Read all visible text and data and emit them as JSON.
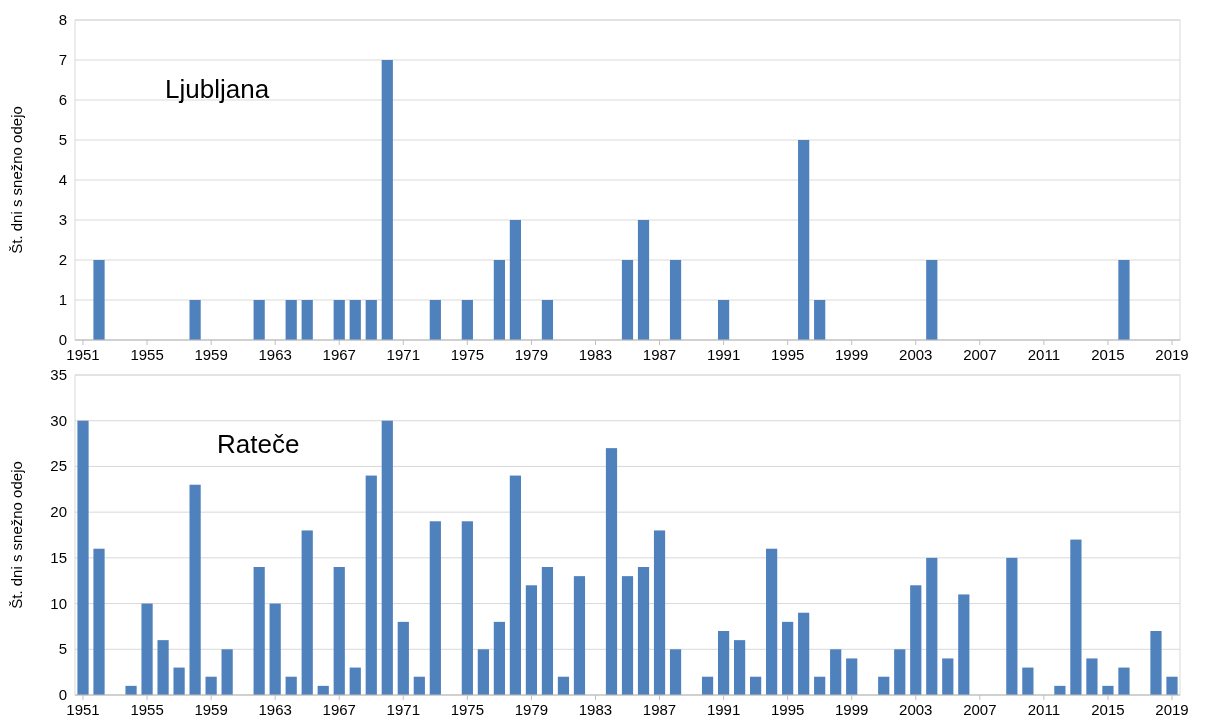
{
  "chart_data": [
    {
      "type": "bar",
      "title": "Ljubljana",
      "ylabel": "Št. dni s snežno odejo",
      "categories": [
        "1951",
        null,
        null,
        null,
        "1955",
        null,
        null,
        null,
        "1959",
        null,
        null,
        null,
        "1963",
        null,
        null,
        null,
        "1967",
        null,
        null,
        null,
        "1971",
        null,
        null,
        null,
        "1975",
        null,
        null,
        null,
        "1979",
        null,
        null,
        null,
        "1983",
        null,
        null,
        null,
        "1987",
        null,
        null,
        null,
        "1991",
        null,
        null,
        null,
        "1995",
        null,
        null,
        null,
        "1999",
        null,
        null,
        null,
        "2003",
        null,
        null,
        null,
        "2007",
        null,
        null,
        null,
        "2011",
        null,
        null,
        null,
        "2015",
        null,
        null,
        null,
        "2019"
      ],
      "values": [
        0,
        2,
        0,
        0,
        0,
        0,
        0,
        1,
        0,
        0,
        0,
        1,
        0,
        1,
        1,
        0,
        1,
        1,
        1,
        7,
        0,
        0,
        1,
        0,
        1,
        0,
        2,
        3,
        0,
        1,
        0,
        0,
        0,
        0,
        2,
        3,
        0,
        2,
        0,
        0,
        1,
        0,
        0,
        0,
        0,
        5,
        1,
        0,
        0,
        0,
        0,
        0,
        0,
        2,
        0,
        0,
        0,
        0,
        0,
        0,
        0,
        0,
        0,
        0,
        0,
        2,
        0,
        0,
        0
      ],
      "color": "#4f81bd",
      "ylim": [
        0,
        8
      ],
      "yticks": [
        0,
        1,
        2,
        3,
        4,
        5,
        6,
        7,
        8
      ],
      "grid": "y"
    },
    {
      "type": "bar",
      "title": "Rateče",
      "ylabel": "Št. dni s snežno odejo",
      "categories": [
        "1951",
        null,
        null,
        null,
        "1955",
        null,
        null,
        null,
        "1959",
        null,
        null,
        null,
        "1963",
        null,
        null,
        null,
        "1967",
        null,
        null,
        null,
        "1971",
        null,
        null,
        null,
        "1975",
        null,
        null,
        null,
        "1979",
        null,
        null,
        null,
        "1983",
        null,
        null,
        null,
        "1987",
        null,
        null,
        null,
        "1991",
        null,
        null,
        null,
        "1995",
        null,
        null,
        null,
        "1999",
        null,
        null,
        null,
        "2003",
        null,
        null,
        null,
        "2007",
        null,
        null,
        null,
        "2011",
        null,
        null,
        null,
        "2015",
        null,
        null,
        null,
        "2019"
      ],
      "values": [
        30,
        16,
        0,
        1,
        10,
        6,
        3,
        23,
        2,
        5,
        0,
        14,
        10,
        2,
        18,
        1,
        14,
        3,
        24,
        30,
        8,
        2,
        19,
        0,
        19,
        5,
        8,
        24,
        12,
        14,
        2,
        13,
        0,
        27,
        13,
        14,
        18,
        5,
        0,
        2,
        7,
        6,
        2,
        16,
        8,
        9,
        2,
        5,
        4,
        0,
        2,
        5,
        12,
        15,
        4,
        11,
        0,
        0,
        15,
        3,
        0,
        1,
        17,
        4,
        1,
        3,
        0,
        7,
        2
      ],
      "color": "#4f81bd",
      "ylim": [
        0,
        35
      ],
      "yticks": [
        0,
        5,
        10,
        15,
        20,
        25,
        30,
        35
      ],
      "grid": "y"
    }
  ]
}
